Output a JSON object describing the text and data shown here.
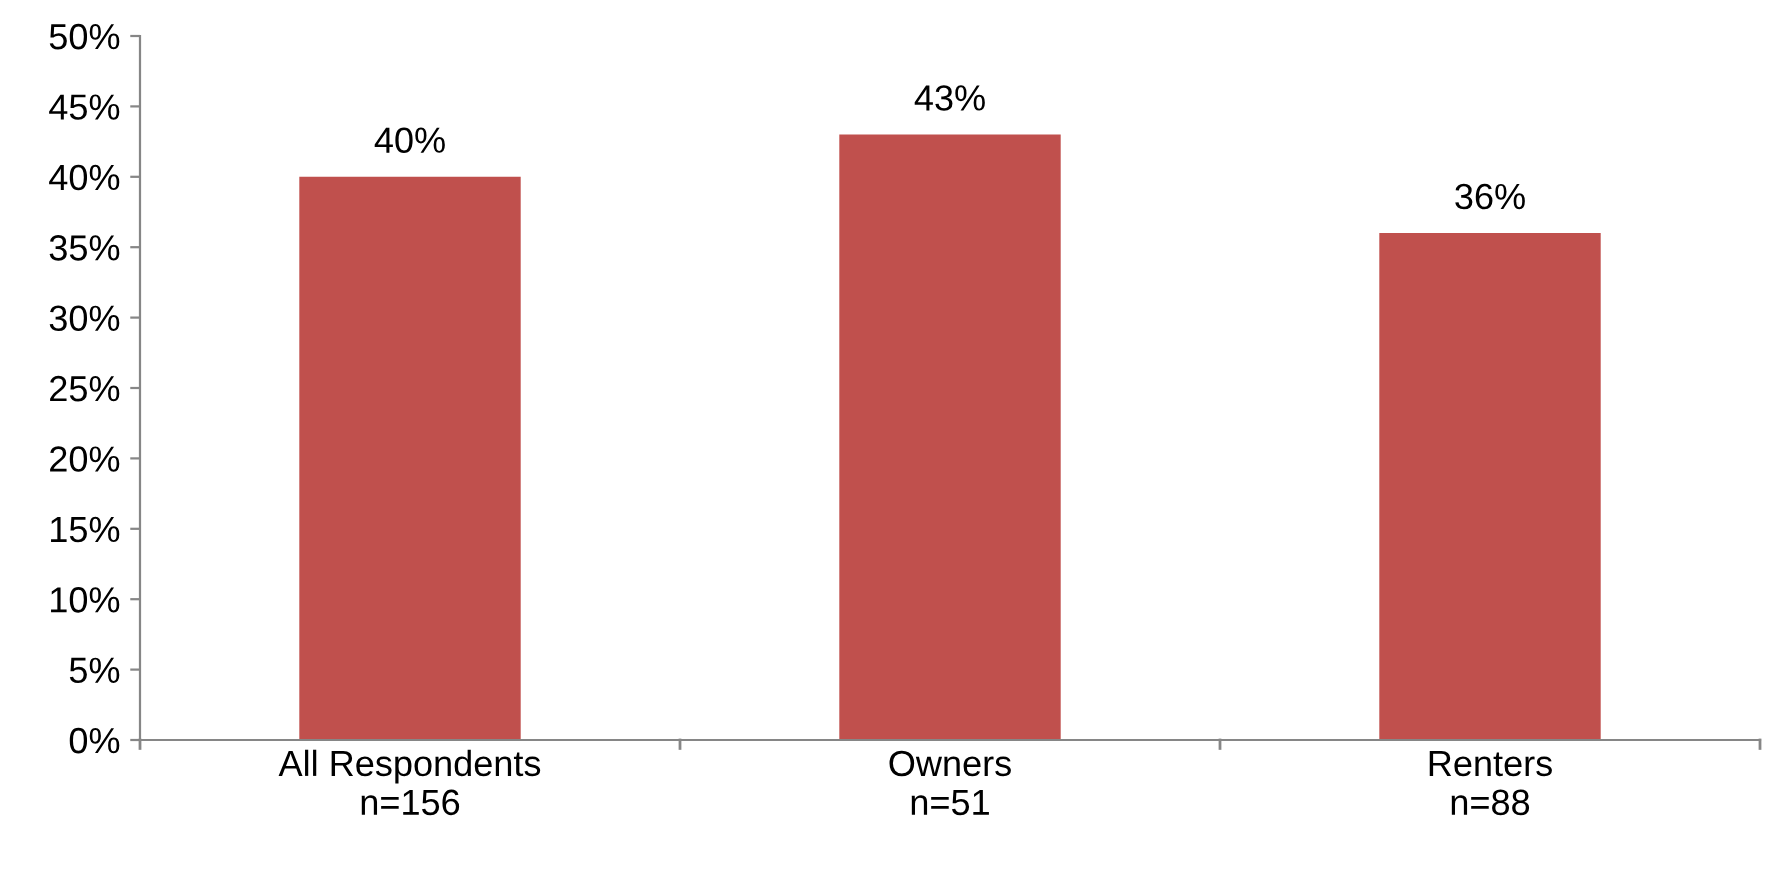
{
  "chart_data": {
    "type": "bar",
    "categories": [
      "All Respondents\nn=156",
      "Owners\nn=51",
      "Renters\nn=88"
    ],
    "values": [
      40,
      43,
      36
    ],
    "value_labels": [
      "40%",
      "43%",
      "36%"
    ],
    "color": "#c0504d",
    "ylim": [
      0,
      50
    ],
    "yticks": [
      {
        "value": 0,
        "label": "0%"
      },
      {
        "value": 5,
        "label": "5%"
      },
      {
        "value": 10,
        "label": "10%"
      },
      {
        "value": 15,
        "label": "15%"
      },
      {
        "value": 20,
        "label": "20%"
      },
      {
        "value": 25,
        "label": "25%"
      },
      {
        "value": 30,
        "label": "30%"
      },
      {
        "value": 35,
        "label": "35%"
      },
      {
        "value": 40,
        "label": "40%"
      },
      {
        "value": 45,
        "label": "45%"
      },
      {
        "value": 50,
        "label": "50%"
      }
    ],
    "grid": false
  }
}
